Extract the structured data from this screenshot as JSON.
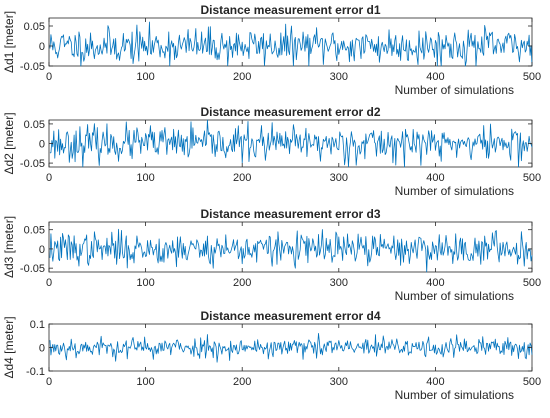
{
  "chart_data": [
    {
      "type": "line",
      "title": "Distance measurement error d1",
      "xlabel": "Number of simulations",
      "ylabel": "Δd1 [meter]",
      "xlim": [
        0,
        500
      ],
      "ylim": [
        -0.05,
        0.07
      ],
      "xticks": [
        0,
        100,
        200,
        300,
        400,
        500
      ],
      "yticks": [
        -0.05,
        0,
        0.05
      ],
      "ytick_labels": [
        "-0.05",
        "0",
        "0.05"
      ],
      "grid": false,
      "series": [
        {
          "color": "#0072bd",
          "amplitude": 0.022,
          "seed": 11,
          "x_range": [
            1,
            500
          ],
          "points": 500
        }
      ]
    },
    {
      "type": "line",
      "title": "Distance measurement error d2",
      "xlabel": "Number of simulations",
      "ylabel": "Δd2 [meter]",
      "xlim": [
        0,
        500
      ],
      "ylim": [
        -0.06,
        0.06
      ],
      "xticks": [
        0,
        100,
        200,
        300,
        400,
        500
      ],
      "yticks": [
        -0.05,
        0,
        0.05
      ],
      "ytick_labels": [
        "-0.05",
        "0",
        "0.05"
      ],
      "grid": false,
      "series": [
        {
          "color": "#0072bd",
          "amplitude": 0.022,
          "seed": 23,
          "x_range": [
            1,
            500
          ],
          "points": 500
        }
      ]
    },
    {
      "type": "line",
      "title": "Distance measurement error d3",
      "xlabel": "Number of simulations",
      "ylabel": "Δd3 [meter]",
      "xlim": [
        0,
        500
      ],
      "ylim": [
        -0.06,
        0.07
      ],
      "xticks": [
        0,
        100,
        200,
        300,
        400,
        500
      ],
      "yticks": [
        -0.05,
        0,
        0.05
      ],
      "ytick_labels": [
        "-0.05",
        "0",
        "0.05"
      ],
      "grid": false,
      "series": [
        {
          "color": "#0072bd",
          "amplitude": 0.021,
          "seed": 37,
          "x_range": [
            1,
            500
          ],
          "points": 500
        }
      ]
    },
    {
      "type": "line",
      "title": "Distance measurement error d4",
      "xlabel": "Number of simulations",
      "ylabel": "Δd4 [meter]",
      "xlim": [
        0,
        500
      ],
      "ylim": [
        -0.1,
        0.1
      ],
      "xticks": [
        0,
        100,
        200,
        300,
        400,
        500
      ],
      "yticks": [
        -0.1,
        0,
        0.1
      ],
      "ytick_labels": [
        "-0.1",
        "0",
        "0.1"
      ],
      "grid": false,
      "series": [
        {
          "color": "#0072bd",
          "amplitude": 0.022,
          "seed": 53,
          "x_range": [
            1,
            500
          ],
          "points": 500
        }
      ]
    }
  ]
}
